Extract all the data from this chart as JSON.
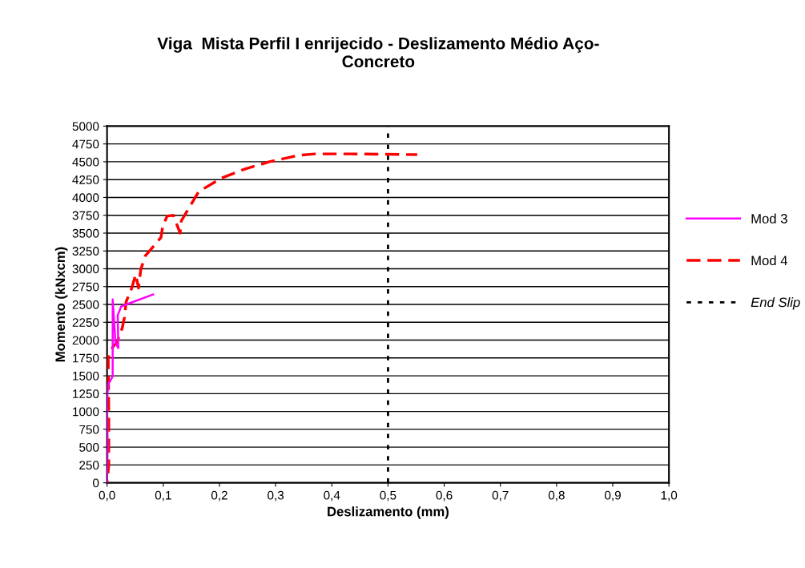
{
  "chart_data": {
    "type": "line",
    "title": "Viga  Mista Perfil I enrijecido - Deslizamento Médio Aço-\nConcreto",
    "xlabel": "Deslizamento (mm)",
    "ylabel": "Momento (kNxcm)",
    "series": [
      {
        "name": "Mod 3",
        "color": "#ff00ff",
        "line_style": "solid",
        "x": [
          0,
          0.001,
          0,
          0.002,
          0.01,
          0.01,
          0.015,
          0.02,
          0.019,
          0.025,
          0.041,
          0.082
        ],
        "values": [
          0,
          520,
          1150,
          1380,
          1490,
          2570,
          1960,
          1890,
          2350,
          2470,
          2520,
          2640
        ]
      },
      {
        "name": "Mod 4",
        "color": "#ff0000",
        "line_style": "dashed",
        "x": [
          0,
          0.003,
          0.003,
          0.002,
          0.01,
          0.018,
          0.027,
          0.031,
          0.034,
          0.044,
          0.051,
          0.056,
          0.06,
          0.068,
          0.08,
          0.096,
          0.099,
          0.107,
          0.118,
          0.13,
          0.132,
          0.144,
          0.163,
          0.203,
          0.246,
          0.289,
          0.341,
          0.37,
          0.43,
          0.552
        ],
        "values": [
          0,
          250,
          970,
          1750,
          1900,
          1980,
          2170,
          2320,
          2540,
          2730,
          2920,
          2730,
          2990,
          3180,
          3290,
          3440,
          3590,
          3740,
          3750,
          3500,
          3670,
          3830,
          4080,
          4270,
          4400,
          4500,
          4590,
          4610,
          4610,
          4600
        ]
      },
      {
        "name": "End Slip",
        "color": "#000000",
        "line_style": "dotted",
        "x": [
          0.5,
          0.5
        ],
        "values": [
          0,
          5000
        ]
      }
    ],
    "xlim": [
      0,
      1
    ],
    "xticks": [
      {
        "value": 0,
        "label": "0,0"
      },
      {
        "value": 0.1,
        "label": "0,1"
      },
      {
        "value": 0.2,
        "label": "0,2"
      },
      {
        "value": 0.3,
        "label": "0,3"
      },
      {
        "value": 0.4,
        "label": "0,4"
      },
      {
        "value": 0.5,
        "label": "0,5"
      },
      {
        "value": 0.6,
        "label": "0,6"
      },
      {
        "value": 0.7,
        "label": "0,7"
      },
      {
        "value": 0.8,
        "label": "0,8"
      },
      {
        "value": 0.9,
        "label": "0,9"
      },
      {
        "value": 1,
        "label": "1,0"
      }
    ],
    "ylim": [
      0,
      5000
    ],
    "yticks": [
      0,
      250,
      500,
      750,
      1000,
      1250,
      1500,
      1750,
      2000,
      2250,
      2500,
      2750,
      3000,
      3250,
      3500,
      3750,
      4000,
      4250,
      4500,
      4750,
      5000
    ],
    "grid": "y",
    "legend": "right",
    "marker": "none"
  }
}
